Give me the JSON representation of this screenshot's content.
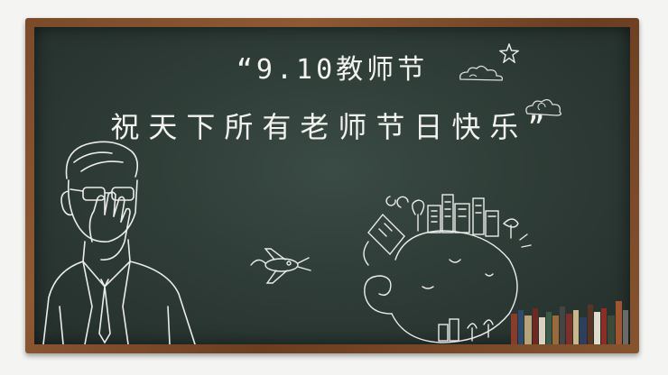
{
  "headline": {
    "line1": "“9.10教师节",
    "line2": "祝天下所有老师节日快乐”"
  },
  "colors": {
    "board": "#2c3934",
    "frame": "#7a4a2a",
    "chalk": "#f2f2ee"
  },
  "illustrations": [
    "teacher-sketch-icon",
    "planet-city-icon",
    "airplane-icon",
    "books-icon",
    "cloud-icon",
    "star-icon"
  ]
}
